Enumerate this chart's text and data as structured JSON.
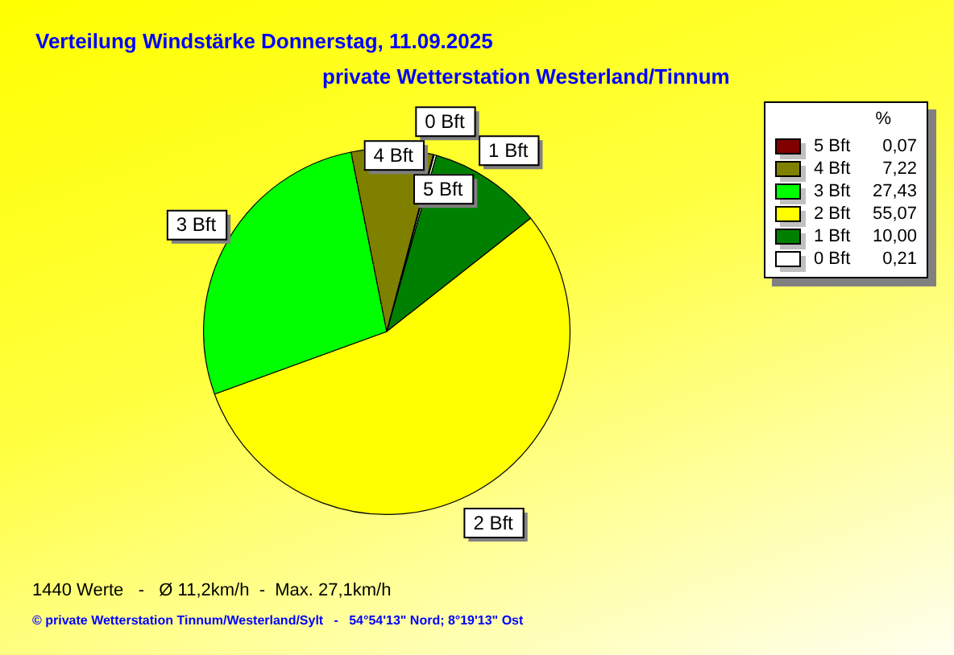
{
  "chart_data": {
    "type": "pie",
    "title": "Verteilung Windstärke  Donnerstag, 11.09.2025",
    "subtitle": "private Wetterstation Westerland/Tinnum",
    "categories": [
      "5 Bft",
      "4 Bft",
      "3 Bft",
      "2 Bft",
      "1 Bft",
      "0 Bft"
    ],
    "values": [
      0.07,
      7.22,
      27.43,
      55.07,
      10.0,
      0.21
    ],
    "colors": [
      "#800000",
      "#808000",
      "#00ff00",
      "#ffff00",
      "#008000",
      "#ffffff"
    ],
    "value_labels": [
      "0,07",
      "7,22",
      "27,43",
      "55,07",
      "10,00",
      "0,21"
    ],
    "legend_title": "%",
    "legend": "top right",
    "annotations": [
      "1440 Werte   -   Ø 11,2km/h  -  Max. 27,1km/h",
      "© private Wetterstation Tinnum/Westerland/Sylt   -   54°54'13\" Nord; 8°19'13\" Ost"
    ]
  }
}
